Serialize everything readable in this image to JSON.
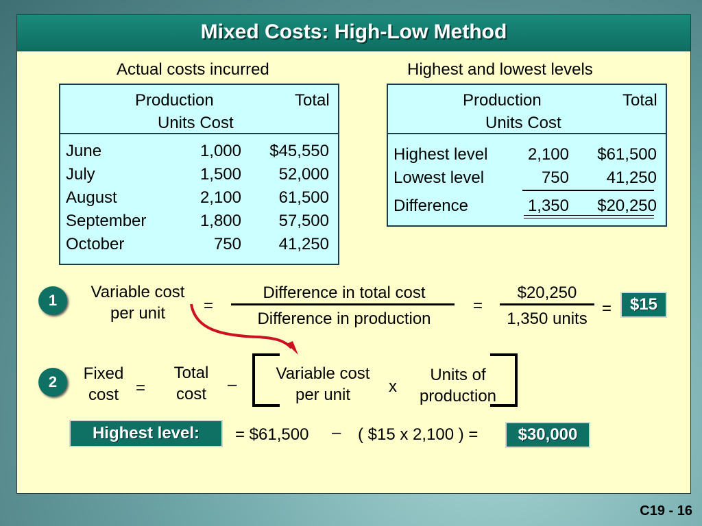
{
  "title": "Mixed Costs:  High-Low Method",
  "actual": {
    "heading": "Actual costs incurred",
    "col1_header": "Production",
    "col2_header": "Total",
    "sub_header": "Units Cost",
    "rows": [
      {
        "month": "June",
        "units": "1,000",
        "cost": "$45,550"
      },
      {
        "month": "July",
        "units": "1,500",
        "cost": "52,000"
      },
      {
        "month": "August",
        "units": "2,100",
        "cost": "61,500"
      },
      {
        "month": "September",
        "units": "1,800",
        "cost": "57,500"
      },
      {
        "month": "October",
        "units": "750",
        "cost": "41,250"
      }
    ]
  },
  "highlow": {
    "heading": "Highest and lowest levels",
    "col1_header": "Production",
    "col2_header": "Total",
    "sub_header": "Units Cost",
    "rows": [
      {
        "label": "Highest level",
        "units": "2,100",
        "cost": "$61,500"
      },
      {
        "label": "Lowest level",
        "units": "750",
        "cost": "41,250"
      },
      {
        "label": "Difference",
        "units": "1,350",
        "cost": "$20,250"
      }
    ]
  },
  "step1": {
    "number": "1",
    "label_line1": "Variable cost",
    "label_line2": "per unit",
    "equals": "=",
    "numerator": "Difference in total cost",
    "denominator": "Difference in production",
    "num_value": "$20,250",
    "den_value": "1,350 units",
    "result": "$15"
  },
  "step2": {
    "number": "2",
    "fixed_line1": "Fixed",
    "fixed_line2": "cost",
    "equals": "=",
    "total_line1": "Total",
    "total_line2": "cost",
    "minus": "–",
    "var_line1": "Variable cost",
    "var_line2": "per unit",
    "times": "x",
    "units_line1": "Units of",
    "units_line2": "production"
  },
  "highest": {
    "label": "Highest level:",
    "expr1": "= $61,500",
    "minus": "–",
    "expr2": "( $15 x 2,100 ) =",
    "result": "$30,000"
  },
  "footer": "C19 - 16",
  "colors": {
    "accent": "#0f7064",
    "panel": "#ffffcc",
    "box": "#ccffff",
    "arrow": "#cc1122"
  }
}
